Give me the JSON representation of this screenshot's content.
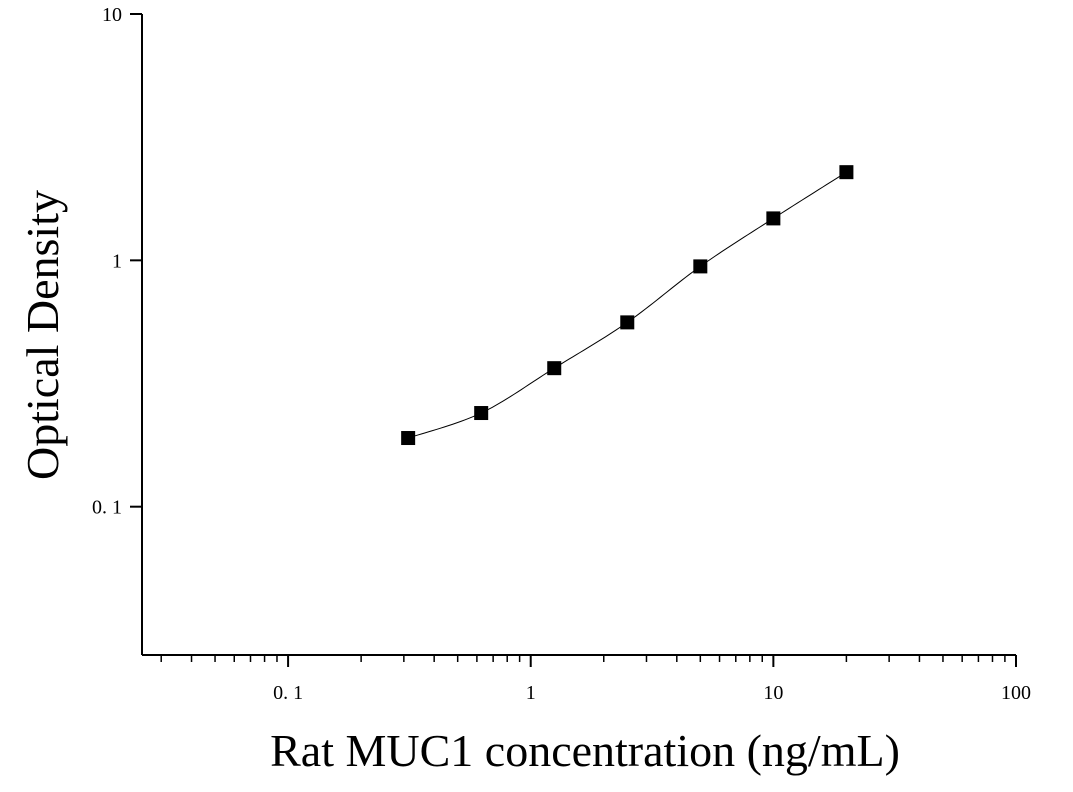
{
  "chart_data": {
    "type": "scatter",
    "title": "",
    "xlabel": "Rat MUC1 concentration (ng/mL)",
    "ylabel": "Optical Density",
    "x_scale": "log",
    "y_scale": "log",
    "xlim": [
      0.025,
      100
    ],
    "ylim": [
      0.025,
      10
    ],
    "x_ticks": [
      0.1,
      1,
      10,
      100
    ],
    "x_tick_labels": [
      "0. 1",
      "1",
      "10",
      "100"
    ],
    "y_ticks": [
      0.1,
      1,
      10
    ],
    "y_tick_labels": [
      "0. 1",
      "1",
      "10"
    ],
    "grid": false,
    "series": [
      {
        "marker": "square",
        "color": "#000000",
        "fit_curve": true,
        "x": [
          0.3125,
          0.625,
          1.25,
          2.5,
          5,
          10,
          20
        ],
        "y": [
          0.19,
          0.24,
          0.365,
          0.56,
          0.945,
          1.48,
          2.28
        ]
      }
    ]
  }
}
